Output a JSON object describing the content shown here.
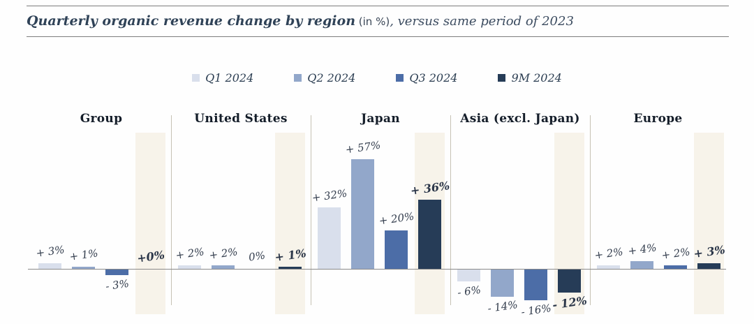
{
  "title": {
    "main": "Quarterly organic revenue change by region",
    "unit": " (in %)",
    "suffix": ", versus same period of 2023"
  },
  "chart_data": {
    "type": "bar",
    "title": "Quarterly organic revenue change by region (in %), versus same period of 2023",
    "unit": "%",
    "comparison": "versus same period of 2023",
    "legend_position": "top-center",
    "series_names": [
      "Q1 2024",
      "Q2 2024",
      "Q3 2024",
      "9M 2024"
    ],
    "series_colors": [
      "#d9dfec",
      "#92a7ca",
      "#4c6da7",
      "#263c57"
    ],
    "highlighted_series": "9M 2024",
    "highlight_band_color": "#f7f3ea",
    "regions": [
      {
        "name": "Group",
        "values": [
          3,
          1,
          -3,
          0
        ],
        "labels": [
          "+ 3%",
          "+ 1%",
          "- 3%",
          "+0%"
        ]
      },
      {
        "name": "United States",
        "values": [
          2,
          2,
          0,
          1
        ],
        "labels": [
          "+ 2%",
          "+ 2%",
          "0%",
          "+ 1%"
        ]
      },
      {
        "name": "Japan",
        "values": [
          32,
          57,
          20,
          36
        ],
        "labels": [
          "+ 32%",
          "+ 57%",
          "+ 20%",
          "+ 36%"
        ]
      },
      {
        "name": "Asia (excl. Japan)",
        "values": [
          -6,
          -14,
          -16,
          -12
        ],
        "labels": [
          "- 6%",
          "- 14%",
          "- 16%",
          "- 12%"
        ]
      },
      {
        "name": "Europe",
        "values": [
          2,
          4,
          2,
          3
        ],
        "labels": [
          "+ 2%",
          "+ 4%",
          "+ 2%",
          "+ 3%"
        ]
      }
    ],
    "ylim": [
      -20,
      60
    ],
    "grid": false
  }
}
